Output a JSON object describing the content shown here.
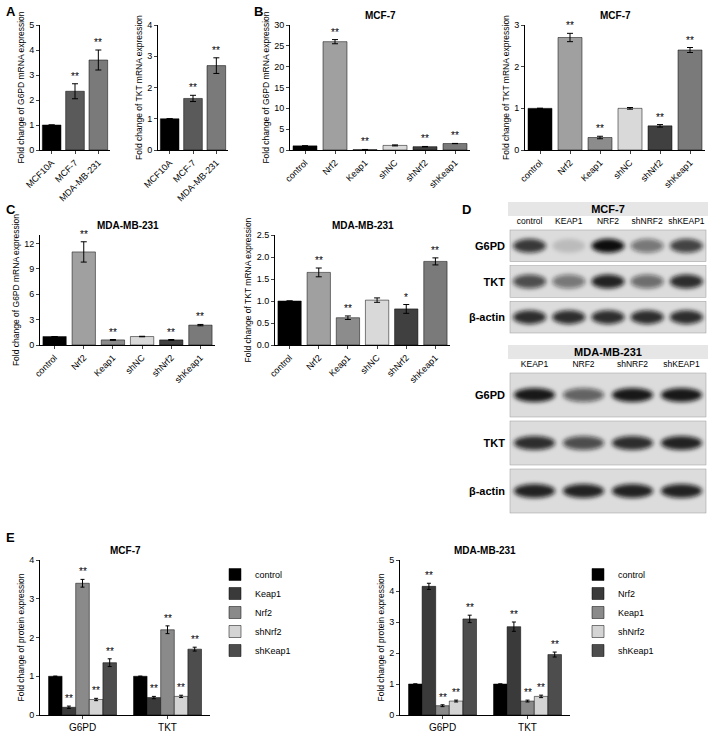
{
  "chart_data": [
    {
      "panel": "A",
      "type": "bar",
      "ylabel": "Fold change of G6PD mRNA expression",
      "categories": [
        "MCF10A",
        "MCF-7",
        "MDA-MB-231"
      ],
      "values": [
        1,
        2.35,
        3.6
      ],
      "errors": [
        0,
        0.3,
        0.4
      ],
      "significance": [
        null,
        "**",
        "**"
      ],
      "colors": [
        "#000000",
        "#5a5a5a",
        "#7a7a7a"
      ],
      "ylim": [
        0,
        5
      ],
      "yticks": [
        0,
        1,
        2,
        3,
        4,
        5
      ],
      "grid": false
    },
    {
      "type": "bar",
      "ylabel": "Fold change of TKT mRNA expression",
      "categories": [
        "MCF10A",
        "MCF-7",
        "MDA-MB-231"
      ],
      "values": [
        1,
        1.65,
        2.7
      ],
      "errors": [
        0,
        0.1,
        0.25
      ],
      "significance": [
        null,
        "**",
        "**"
      ],
      "colors": [
        "#000000",
        "#5a5a5a",
        "#7a7a7a"
      ],
      "ylim": [
        0,
        4
      ],
      "yticks": [
        0,
        1,
        2,
        3,
        4
      ],
      "grid": false
    },
    {
      "panel": "B",
      "type": "bar",
      "title": "MCF-7",
      "ylabel": "Fold change of G6PD mRNA expression",
      "categories": [
        "control",
        "Nrf2",
        "Keap1",
        "shNC",
        "shNrf2",
        "shKeap1"
      ],
      "values": [
        1,
        26,
        0.1,
        1.1,
        0.8,
        1.55
      ],
      "errors": [
        0,
        0.5,
        0.03,
        0.12,
        0.05,
        0.03
      ],
      "significance": [
        null,
        "**",
        "**",
        null,
        "**",
        "**"
      ],
      "colors": [
        "#000000",
        "#a0a0a0",
        "#8c8c8c",
        "#d9d9d9",
        "#404040",
        "#7a7a7a"
      ],
      "ylim": [
        0,
        30
      ],
      "yticks": [
        0,
        5,
        10,
        15,
        20,
        25,
        30
      ],
      "grid": false
    },
    {
      "type": "bar",
      "title": "MCF-7",
      "ylabel": "Fold change of TKT mRNA expression",
      "categories": [
        "control",
        "Nrf2",
        "Keap1",
        "shNC",
        "shNrf2",
        "shKeap1"
      ],
      "values": [
        1,
        2.7,
        0.3,
        1.0,
        0.58,
        2.4
      ],
      "errors": [
        0,
        0.1,
        0.03,
        0.02,
        0.03,
        0.06
      ],
      "significance": [
        null,
        "**",
        "**",
        null,
        "**",
        "**"
      ],
      "colors": [
        "#000000",
        "#a0a0a0",
        "#8c8c8c",
        "#d9d9d9",
        "#404040",
        "#7a7a7a"
      ],
      "ylim": [
        0,
        3
      ],
      "yticks": [
        0,
        1,
        2,
        3
      ],
      "grid": false
    },
    {
      "panel": "C",
      "type": "bar",
      "title": "MDA-MB-231",
      "ylabel": "Fold change of G6PD mRNA expression",
      "categories": [
        "control",
        "Nrf2",
        "Keap1",
        "shNC",
        "shNrf2",
        "shKeap1"
      ],
      "values": [
        1,
        11,
        0.6,
        1.0,
        0.6,
        2.35
      ],
      "errors": [
        0,
        1.2,
        0.05,
        0.03,
        0.05,
        0.08
      ],
      "significance": [
        null,
        "**",
        "**",
        null,
        "**",
        "**"
      ],
      "colors": [
        "#000000",
        "#a0a0a0",
        "#8c8c8c",
        "#d9d9d9",
        "#404040",
        "#7a7a7a"
      ],
      "ylim": [
        0,
        13
      ],
      "yticks": [
        0,
        3,
        6,
        9,
        12
      ],
      "grid": false
    },
    {
      "type": "bar",
      "title": "MDA-MB-231",
      "ylabel": "Fold change of TKT mRNA expression",
      "categories": [
        "control",
        "Nrf2",
        "Keap1",
        "shNC",
        "shNrf2",
        "shKeap1"
      ],
      "values": [
        1,
        1.65,
        0.62,
        1.02,
        0.82,
        1.9
      ],
      "errors": [
        0,
        0.1,
        0.04,
        0.05,
        0.1,
        0.08
      ],
      "significance": [
        null,
        "**",
        "**",
        null,
        "*",
        "**"
      ],
      "colors": [
        "#000000",
        "#a0a0a0",
        "#8c8c8c",
        "#d9d9d9",
        "#404040",
        "#7a7a7a"
      ],
      "ylim": [
        0,
        2.5
      ],
      "yticks": [
        {
          "value": 0,
          "label": "0.0"
        },
        {
          "value": 0.5,
          "label": "0.5"
        },
        {
          "value": 1,
          "label": "1.0"
        },
        {
          "value": 1.5,
          "label": "1.5"
        },
        {
          "value": 2,
          "label": "2.0"
        },
        {
          "value": 2.5,
          "label": "2.5"
        }
      ],
      "grid": false
    },
    {
      "panel": "E",
      "type": "bar",
      "title": "MCF-7",
      "ylabel": "Fold change of protein expression",
      "categories": [
        "G6PD",
        "TKT"
      ],
      "series": [
        {
          "name": "control",
          "color": "#000000",
          "values": [
            1,
            1
          ],
          "errors": [
            0,
            0
          ],
          "significance": [
            null,
            null
          ]
        },
        {
          "name": "Keap1",
          "color": "#3a3a3a",
          "values": [
            0.2,
            0.45
          ],
          "errors": [
            0.03,
            0.03
          ],
          "significance": [
            "**",
            "**"
          ]
        },
        {
          "name": "Nrf2",
          "color": "#8a8a8a",
          "values": [
            3.4,
            2.2
          ],
          "errors": [
            0.1,
            0.1
          ],
          "significance": [
            "**",
            "**"
          ]
        },
        {
          "name": "shNrf2",
          "color": "#d4d4d4",
          "values": [
            0.4,
            0.48
          ],
          "errors": [
            0.03,
            0.03
          ],
          "significance": [
            "**",
            "**"
          ]
        },
        {
          "name": "shKeap1",
          "color": "#4d4d4d",
          "values": [
            1.35,
            1.7
          ],
          "errors": [
            0.1,
            0.05
          ],
          "significance": [
            "**",
            "**"
          ]
        }
      ],
      "ylim": [
        0,
        4
      ],
      "yticks": [
        0,
        1,
        2,
        3,
        4
      ],
      "grid": false,
      "legend": "right"
    },
    {
      "type": "bar",
      "title": "MDA-MB-231",
      "ylabel": "Fold change of protein expression",
      "categories": [
        "G6PD",
        "TKT"
      ],
      "series": [
        {
          "name": "control",
          "color": "#000000",
          "values": [
            1,
            1
          ],
          "errors": [
            0,
            0
          ],
          "significance": [
            null,
            null
          ]
        },
        {
          "name": "Nrf2",
          "color": "#3a3a3a",
          "values": [
            4.15,
            2.85
          ],
          "errors": [
            0.1,
            0.15
          ],
          "significance": [
            "**",
            "**"
          ]
        },
        {
          "name": "Keap1",
          "color": "#8a8a8a",
          "values": [
            0.3,
            0.45
          ],
          "errors": [
            0.03,
            0.03
          ],
          "significance": [
            "**",
            "**"
          ]
        },
        {
          "name": "shNrf2",
          "color": "#d4d4d4",
          "values": [
            0.45,
            0.6
          ],
          "errors": [
            0.03,
            0.04
          ],
          "significance": [
            "**",
            "**"
          ]
        },
        {
          "name": "shKeap1",
          "color": "#4d4d4d",
          "values": [
            3.1,
            1.95
          ],
          "errors": [
            0.12,
            0.08
          ],
          "significance": [
            "**",
            "**"
          ]
        }
      ],
      "ylim": [
        0,
        5
      ],
      "yticks": [
        0,
        1,
        2,
        3,
        4,
        5
      ],
      "grid": false,
      "legend": "right"
    }
  ],
  "blot_panel": {
    "panel": "D",
    "blots": [
      {
        "title": "MCF-7",
        "lanes": [
          "control",
          "KEAP1",
          "NRF2",
          "shNRF2",
          "shKEAP1"
        ],
        "rows": [
          {
            "label": "G6PD",
            "intensity": [
              0.8,
              0.15,
              1.0,
              0.5,
              0.75
            ]
          },
          {
            "label": "TKT",
            "intensity": [
              0.7,
              0.5,
              0.9,
              0.55,
              0.85
            ]
          },
          {
            "label": "β-actin",
            "intensity": [
              0.85,
              0.85,
              0.85,
              0.85,
              0.85
            ]
          }
        ]
      },
      {
        "title": "MDA-MB-231",
        "lanes": [
          "KEAP1",
          "NRF2",
          "shNRF2",
          "shKEAP1"
        ],
        "rows": [
          {
            "label": "G6PD",
            "intensity": [
              0.95,
              0.6,
              0.95,
              0.95
            ]
          },
          {
            "label": "TKT",
            "intensity": [
              0.85,
              0.7,
              0.85,
              0.9
            ]
          },
          {
            "label": "β-actin",
            "intensity": [
              0.9,
              0.9,
              0.9,
              0.9
            ]
          }
        ]
      }
    ]
  }
}
